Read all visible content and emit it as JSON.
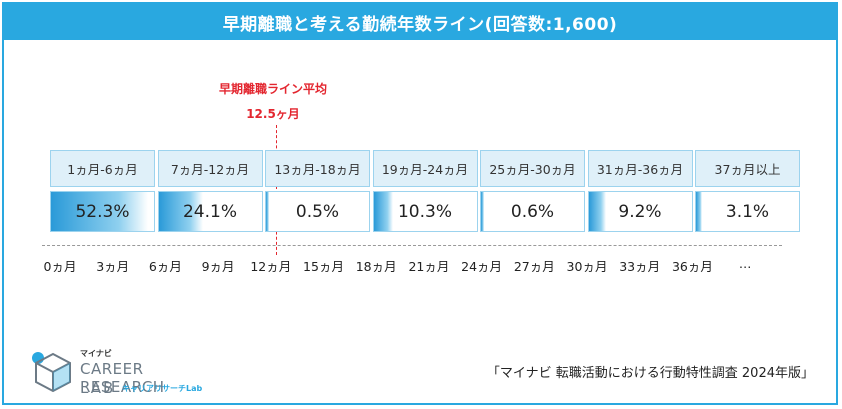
{
  "title": "早期離職と考える勤続年数ライン(回答数:1,600)",
  "average": {
    "label": "早期離職ライン平均",
    "value_text": "12.5ヶ月",
    "months": 12.5
  },
  "chart_data": {
    "type": "table",
    "title": "早期離職と考える勤続年数ライン(回答数:1,600)",
    "categories": [
      "1ヵ月-6ヵ月",
      "7ヵ月-12ヵ月",
      "13ヵ月-18ヵ月",
      "19ヵ月-24ヵ月",
      "25ヵ月-30ヵ月",
      "31ヵ月-36ヵ月",
      "37ヵ月以上"
    ],
    "values": [
      52.3,
      24.1,
      0.5,
      10.3,
      0.6,
      9.2,
      3.1
    ],
    "value_labels": [
      "52.3%",
      "24.1%",
      "0.5%",
      "10.3%",
      "0.6%",
      "9.2%",
      "3.1%"
    ],
    "unit": "%",
    "x_ticks": [
      "0ヵ月",
      "3ヵ月",
      "6ヵ月",
      "9ヵ月",
      "12ヵ月",
      "15ヵ月",
      "18ヵ月",
      "21ヵ月",
      "24ヵ月",
      "27ヵ月",
      "30ヵ月",
      "33ヵ月",
      "36ヵ月",
      "…"
    ],
    "average_line": 12.5
  },
  "colors": {
    "accent": "#29a8e0",
    "header_bg": "#dff0f9",
    "average_line": "#e3262f",
    "bar_dark": "#2a9ad8"
  },
  "logo": {
    "small": "マイナビ",
    "main": "CAREER RESEARCH",
    "lab": "LAB",
    "sub": "キャリアリサーチLab"
  },
  "source": "「マイナビ 転職活動における行動特性調査 2024年版」"
}
